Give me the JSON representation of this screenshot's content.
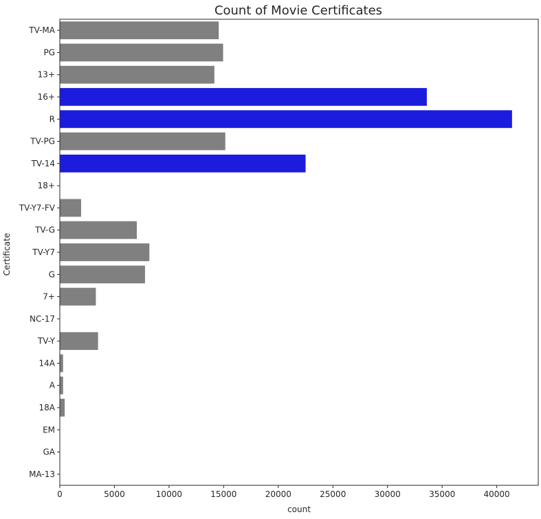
{
  "chart_data": {
    "type": "bar",
    "orientation": "horizontal",
    "title": "Count of Movie Certificates",
    "xlabel": "count",
    "ylabel": "Certificate",
    "xlim": [
      0,
      43800
    ],
    "x_ticks": [
      0,
      5000,
      10000,
      15000,
      20000,
      25000,
      30000,
      35000,
      40000
    ],
    "grid": false,
    "legend": "none",
    "categories": [
      "TV-MA",
      "PG",
      "13+",
      "16+",
      "R",
      "TV-PG",
      "TV-14",
      "18+",
      "TV-Y7-FV",
      "TV-G",
      "TV-Y7",
      "G",
      "7+",
      "NC-17",
      "TV-Y",
      "14A",
      "A",
      "18A",
      "EM",
      "GA",
      "MA-13"
    ],
    "values": [
      14550,
      14950,
      14150,
      33600,
      41400,
      15150,
      22500,
      0,
      1950,
      7050,
      8200,
      7800,
      3300,
      0,
      3500,
      300,
      300,
      450,
      0,
      0,
      0
    ],
    "highlighted": [
      "16+",
      "R",
      "TV-14"
    ],
    "colors": {
      "default": "#808080",
      "highlight": "#1c1cdf",
      "axis": "#262626"
    }
  }
}
